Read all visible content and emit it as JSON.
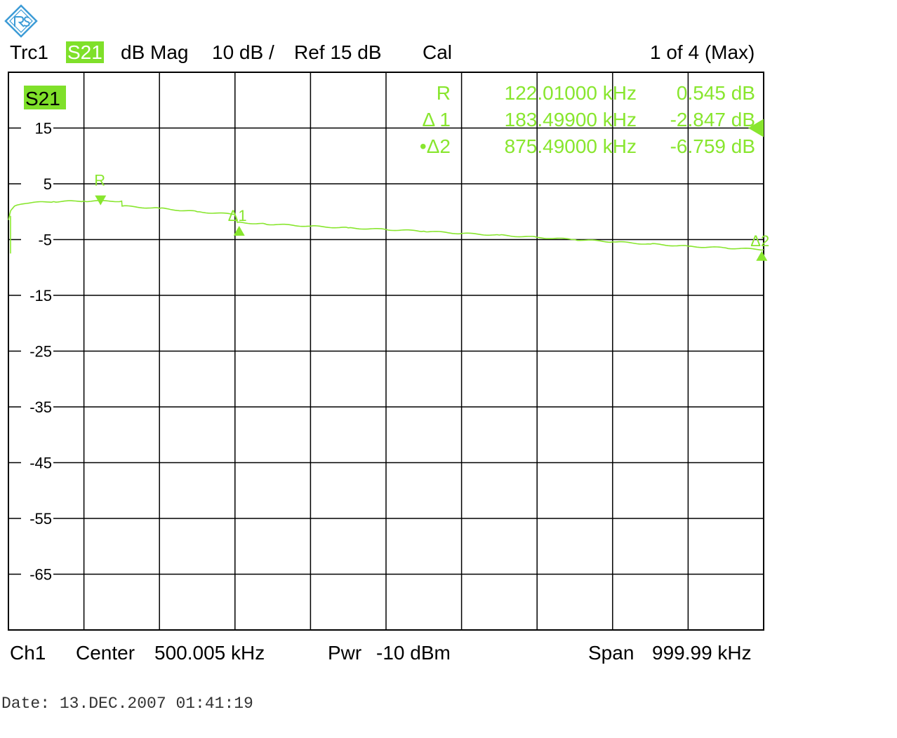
{
  "colors": {
    "trace": "#88e62e",
    "highlight": "#7fe02a",
    "grid": "#000000",
    "logo": "#3c9bd6"
  },
  "logo": {
    "icon": "rohde-schwarz-logo-icon"
  },
  "header": {
    "trace": "Trc1",
    "param": "S21",
    "format": "dB Mag",
    "scale": "10 dB /",
    "ref": "Ref 15 dB",
    "cal": "Cal",
    "page": "1 of 4 (Max)"
  },
  "footer": {
    "channel": "Ch1",
    "center_label": "Center",
    "center_value": "500.005 kHz",
    "pwr_label": "Pwr",
    "pwr_value": "-10 dBm",
    "span_label": "Span",
    "span_value": "999.99 kHz"
  },
  "date": "Date: 13.DEC.2007  01:41:19",
  "chart_data": {
    "type": "line",
    "trace_label": "S21",
    "xlim": [
      10,
      1000000
    ],
    "ylim": [
      -75,
      25
    ],
    "yticks": [
      15,
      5,
      -5,
      -15,
      -25,
      -35,
      -45,
      -55,
      -65
    ],
    "x_unit": "Hz",
    "y_unit": "dB",
    "grid": true,
    "series": [
      {
        "x": [
          10,
          3000,
          8000,
          30000,
          60000,
          100000,
          150000,
          150500,
          200000,
          250000,
          300000,
          303000,
          340000,
          400000,
          450000,
          500000,
          550000,
          600000,
          650000,
          700000,
          750000,
          800000,
          850000,
          900000,
          950000,
          1000000
        ],
        "y": [
          -1.5,
          0.2,
          1.0,
          1.6,
          1.8,
          1.9,
          1.9,
          1.0,
          0.6,
          0.0,
          -0.5,
          -1.9,
          -2.2,
          -2.6,
          -2.9,
          -3.2,
          -3.5,
          -3.9,
          -4.2,
          -4.6,
          -5.0,
          -5.4,
          -5.8,
          -6.2,
          -6.5,
          -6.8
        ]
      }
    ],
    "markers": [
      {
        "name": "R",
        "freq": "122.01000 kHz",
        "value": "0.545 dB",
        "x": 122010,
        "y": 1.9,
        "dir": "down"
      },
      {
        "name": "Δ 1",
        "label": "Δ1",
        "freq": "183.49900 kHz",
        "value": "-2.847 dB",
        "x": 305500,
        "y": -2.3,
        "dir": "up"
      },
      {
        "name": "•Δ2",
        "label": "Δ2",
        "freq": "875.49000 kHz",
        "value": "-6.759 dB",
        "x": 997500,
        "y": -6.8,
        "dir": "up"
      }
    ]
  }
}
